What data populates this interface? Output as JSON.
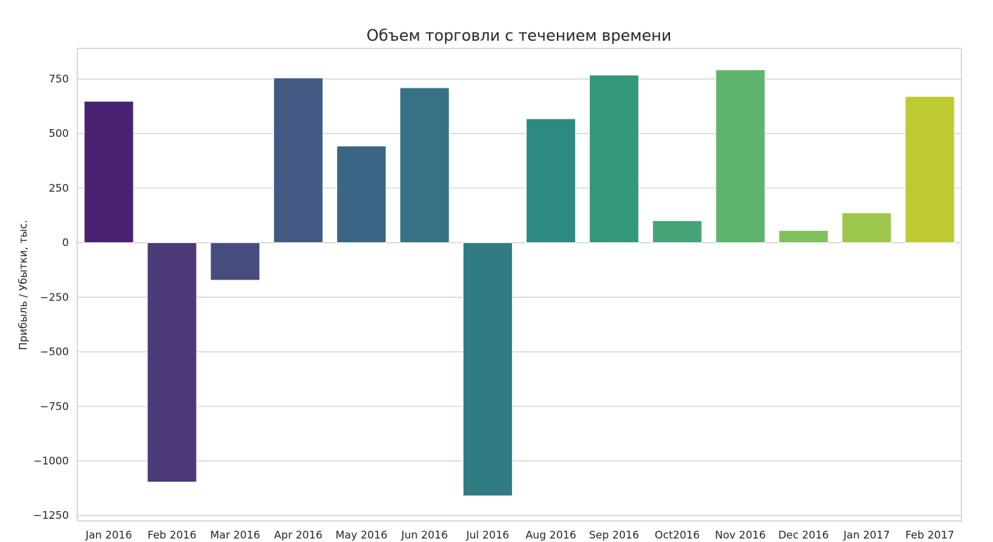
{
  "chart_data": {
    "type": "bar",
    "title": "Объем торговли с течением времени",
    "xlabel": "",
    "ylabel": "Прибыль / Убытки, тыс.",
    "categories": [
      "Jan 2016",
      "Feb 2016",
      "Mar 2016",
      "Apr 2016",
      "May 2016",
      "Jun 2016",
      "Jul 2016",
      "Aug 2016",
      "Sep 2016",
      "Oct2016",
      "Nov 2016",
      "Dec 2016",
      "Jan 2017",
      "Feb 2017"
    ],
    "values": [
      648,
      -1097,
      -172,
      755,
      443,
      710,
      -1160,
      568,
      768,
      101,
      792,
      56,
      137,
      670
    ],
    "colors": [
      "#482173",
      "#4b3978",
      "#474c7f",
      "#425a83",
      "#3c6784",
      "#367185",
      "#317b82",
      "#2c8a80",
      "#33977b",
      "#46a476",
      "#5fb56e",
      "#7fc15c",
      "#9dc84b",
      "#bdca32"
    ],
    "ylim": [
      -1275,
      890
    ],
    "yticks": [
      -1250,
      -1000,
      -750,
      -500,
      -250,
      0,
      250,
      500,
      750
    ],
    "ytick_labels": [
      "−1250",
      "−1000",
      "−750",
      "−500",
      "−250",
      "0",
      "250",
      "500",
      "750"
    ],
    "grid": "horizontal",
    "legend": "none"
  }
}
